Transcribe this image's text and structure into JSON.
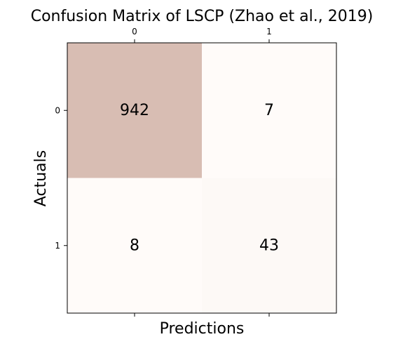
{
  "chart_data": {
    "type": "heatmap",
    "title": "Confusion Matrix of LSCP (Zhao et al., 2019)",
    "xlabel": "Predictions",
    "ylabel": "Actuals",
    "x_ticks": [
      "0",
      "1"
    ],
    "y_ticks": [
      "0",
      "1"
    ],
    "values": [
      [
        942,
        7
      ],
      [
        8,
        43
      ]
    ],
    "colors": {
      "high": "#d8bdb3",
      "low": "#fffbf9",
      "frame": "#000000"
    }
  }
}
